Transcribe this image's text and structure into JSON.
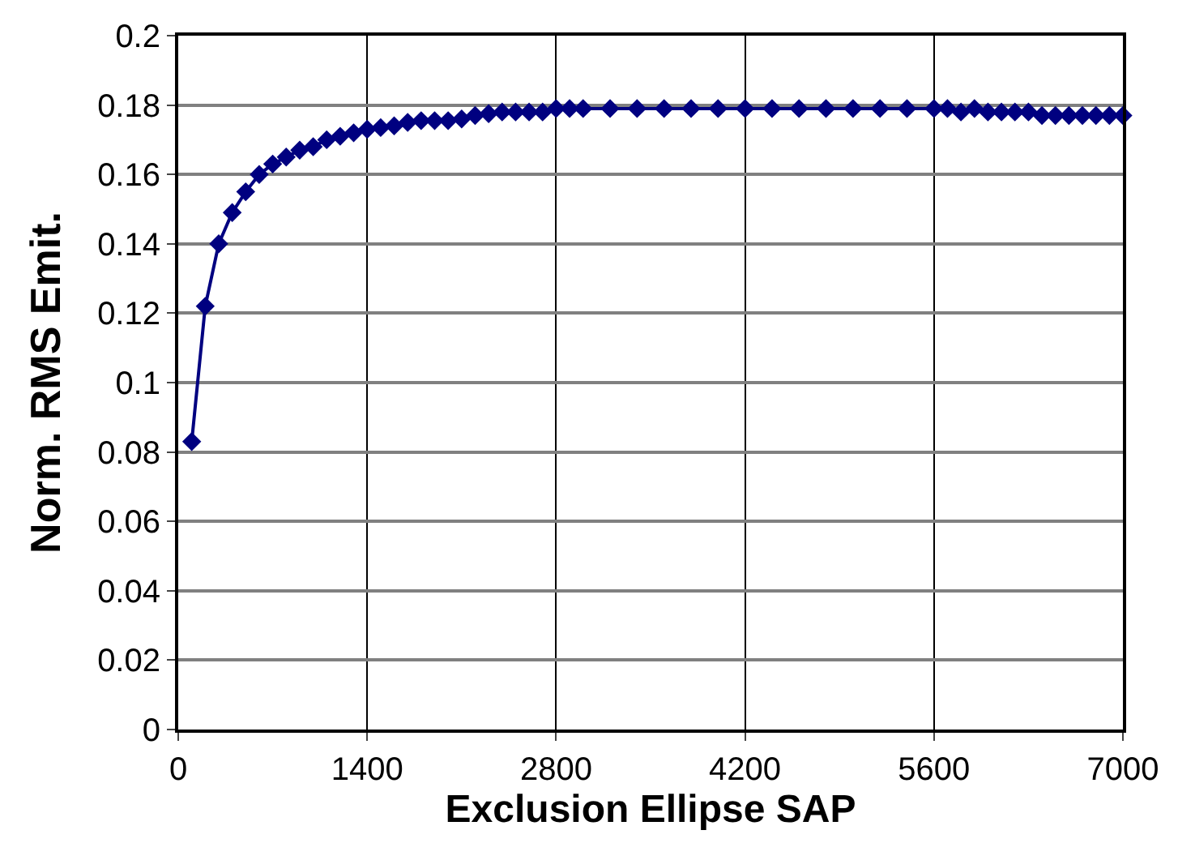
{
  "chart_data": {
    "type": "line",
    "xlabel": "Exclusion Ellipse SAP",
    "ylabel": "Norm. RMS Emit.",
    "x": [
      100,
      200,
      300,
      400,
      500,
      600,
      700,
      800,
      900,
      1000,
      1100,
      1200,
      1300,
      1400,
      1500,
      1600,
      1700,
      1800,
      1900,
      2000,
      2100,
      2200,
      2300,
      2400,
      2500,
      2600,
      2700,
      2800,
      2900,
      3000,
      3200,
      3400,
      3600,
      3800,
      4000,
      4200,
      4400,
      4600,
      4800,
      5000,
      5200,
      5400,
      5600,
      5700,
      5800,
      5900,
      6000,
      6100,
      6200,
      6300,
      6400,
      6500,
      6600,
      6700,
      6800,
      6900,
      7000
    ],
    "series": [
      {
        "color": "#000080",
        "values": [
          0.083,
          0.122,
          0.14,
          0.149,
          0.155,
          0.16,
          0.163,
          0.165,
          0.167,
          0.168,
          0.17,
          0.171,
          0.172,
          0.173,
          0.1735,
          0.174,
          0.175,
          0.1755,
          0.1755,
          0.1755,
          0.176,
          0.177,
          0.1775,
          0.178,
          0.178,
          0.178,
          0.178,
          0.179,
          0.179,
          0.179,
          0.179,
          0.179,
          0.179,
          0.179,
          0.179,
          0.179,
          0.179,
          0.179,
          0.179,
          0.179,
          0.179,
          0.179,
          0.179,
          0.179,
          0.178,
          0.179,
          0.178,
          0.178,
          0.178,
          0.178,
          0.177,
          0.177,
          0.177,
          0.177,
          0.177,
          0.177,
          0.177
        ]
      }
    ],
    "xlim": [
      0,
      7000
    ],
    "xticks": [
      0,
      1400,
      2800,
      4200,
      5600,
      7000
    ],
    "ylim": [
      0,
      0.2
    ],
    "yticks": [
      0,
      0.02,
      0.04,
      0.06,
      0.08,
      0.1,
      0.12,
      0.14,
      0.16,
      0.18,
      0.2
    ],
    "grid": true,
    "marker": "diamond",
    "line_style": "solid"
  }
}
